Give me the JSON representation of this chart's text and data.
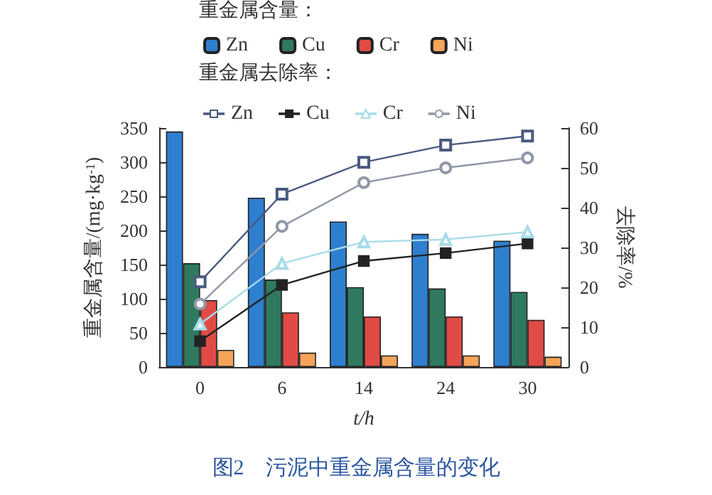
{
  "chart_data": {
    "type": "bar",
    "title": "图2　污泥中重金属含量的变化",
    "xlabel": "t/h",
    "ylabel": "重金属含量/(mg·kg$^{-1}$)",
    "y2label": "去除率/%",
    "legend_title": "重金属含量：",
    "annotations": [
      "重金属去除率："
    ],
    "categories": [
      "0",
      "6",
      "14",
      "24",
      "30"
    ],
    "series": [
      {
        "name": "Zn",
        "color": "#2e7fd0",
        "values": [
          345,
          248,
          213,
          195,
          185
        ]
      },
      {
        "name": "Cu",
        "color": "#2f7a5e",
        "values": [
          152,
          128,
          117,
          115,
          110
        ]
      },
      {
        "name": "Cr",
        "color": "#e04b45",
        "values": [
          98,
          80,
          74,
          74,
          69
        ]
      },
      {
        "name": "Ni",
        "color": "#f5a45a",
        "values": [
          25,
          21,
          17,
          17,
          15
        ]
      },
      {
        "name": "Zn",
        "type": "line",
        "axis": "y2",
        "marker": "square",
        "color": "#4a5a80",
        "values": [
          21.4,
          43.4,
          51.4,
          55.7,
          58
        ]
      },
      {
        "name": "Cu",
        "type": "line",
        "axis": "y2",
        "marker": "square",
        "color": "#222222",
        "values": [
          6.5,
          20.6,
          26.6,
          28.6,
          31
        ]
      },
      {
        "name": "Cr",
        "type": "line",
        "axis": "y2",
        "marker": "triangle",
        "color": "#a8dcea",
        "values": [
          10.8,
          26,
          31.4,
          32,
          33.9
        ]
      },
      {
        "name": "Ni",
        "type": "line",
        "axis": "y2",
        "marker": "circle",
        "color": "#9098a8",
        "values": [
          15.8,
          35.3,
          46.3,
          50,
          52.5
        ]
      }
    ],
    "ylim": [
      0,
      350
    ],
    "yticks": [
      0,
      50,
      100,
      150,
      200,
      250,
      300,
      350
    ],
    "y2lim": [
      0,
      60
    ],
    "y2ticks": [
      0,
      10,
      20,
      30,
      40,
      50,
      60
    ],
    "legend": "top",
    "grid": false
  }
}
